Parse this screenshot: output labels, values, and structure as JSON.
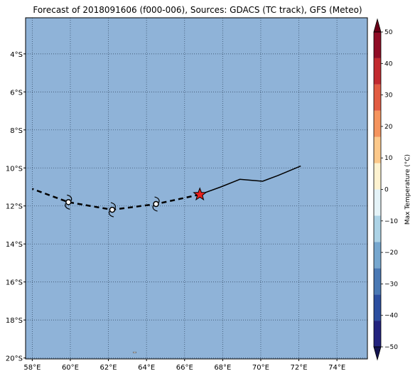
{
  "title": "Forecast of 2018091606 (f000-006), Sources: GDACS (TC track), GFS (Meteo)",
  "map": {
    "ocean_color": "#8fb3d8",
    "lon_range": [
      57.65,
      75.6
    ],
    "lat_range": [
      -20.05,
      -2.1
    ],
    "lon_ticks": [
      "58°E",
      "60°E",
      "62°E",
      "64°E",
      "66°E",
      "68°E",
      "70°E",
      "72°E",
      "74°E"
    ],
    "lon_tick_values": [
      58,
      60,
      62,
      64,
      66,
      68,
      70,
      72,
      74
    ],
    "lat_ticks": [
      "4°S",
      "6°S",
      "8°S",
      "10°S",
      "12°S",
      "14°S",
      "16°S",
      "18°S",
      "20°S"
    ],
    "lat_tick_values": [
      -4,
      -6,
      -8,
      -10,
      -12,
      -14,
      -16,
      -18,
      -20
    ],
    "grid": "dotted"
  },
  "track": {
    "past": [
      [
        72.1,
        -9.9
      ],
      [
        70.9,
        -10.4
      ],
      [
        70.1,
        -10.7
      ],
      [
        68.9,
        -10.6
      ],
      [
        67.9,
        -11.0
      ],
      [
        66.8,
        -11.4
      ]
    ],
    "forecast": [
      [
        66.8,
        -11.4
      ],
      [
        64.5,
        -11.9
      ],
      [
        62.2,
        -12.2
      ],
      [
        59.9,
        -11.8
      ],
      [
        58.0,
        -11.1
      ]
    ],
    "current_position": [
      66.8,
      -11.4
    ],
    "forecast_points": [
      [
        64.5,
        -11.9
      ],
      [
        62.2,
        -12.2
      ],
      [
        59.9,
        -11.8
      ]
    ],
    "current_marker_color": "#e8201c",
    "current_marker_icon": "star-icon",
    "forecast_marker_icon": "cyclone-icon"
  },
  "colorbar": {
    "label": "Max Temperature (°C)",
    "ticks": [
      "50",
      "40",
      "30",
      "20",
      "10",
      "0",
      "−10",
      "−20",
      "−30",
      "−40",
      "−50"
    ],
    "tick_values": [
      50,
      40,
      30,
      20,
      10,
      0,
      -10,
      -20,
      -30,
      -40,
      -50
    ],
    "range": [
      -50,
      50
    ],
    "colors": [
      "#23237e",
      "#2c4fa0",
      "#4a79b4",
      "#76a7cf",
      "#acd3e6",
      "#e4f3f8",
      "#fdf2d0",
      "#fcc98b",
      "#f5945e",
      "#e25c42",
      "#c22a2f",
      "#900d26"
    ],
    "under_color": "#141450",
    "over_color": "#6a0018"
  }
}
